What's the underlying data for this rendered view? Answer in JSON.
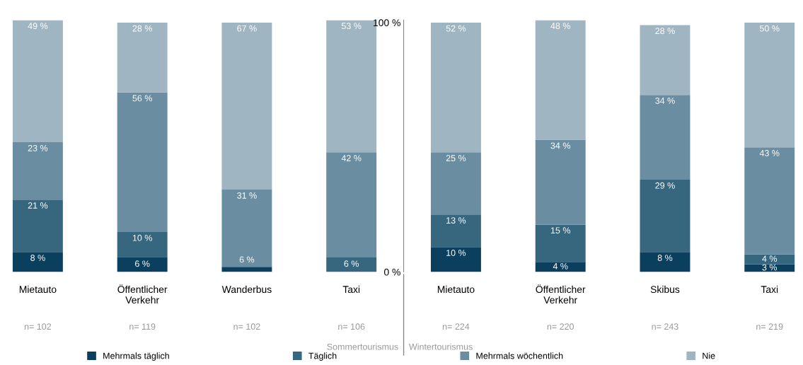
{
  "chart_data": {
    "type": "bar",
    "stacked": true,
    "categories": [
      "Mietauto",
      "Öffentlicher\nVerkehr",
      "Wanderbus",
      "Taxi",
      "Mietauto",
      "Öffentlicher\nVerkehr",
      "Skibus",
      "Taxi"
    ],
    "series": [
      {
        "name": "Mehrmals täglich",
        "color": "#0b3f5e",
        "values": [
          8,
          6,
          2,
          0,
          10,
          4,
          8,
          3
        ],
        "value_labels": [
          "8 %",
          "6 %",
          null,
          null,
          "10 %",
          "4 %",
          "8 %",
          "3 %"
        ]
      },
      {
        "name": "Täglich",
        "color": "#37677f",
        "values": [
          21,
          10,
          0,
          6,
          13,
          15,
          29,
          4
        ],
        "value_labels": [
          "21 %",
          "10 %",
          null,
          "6 %",
          "13 %",
          "15 %",
          "29 %",
          "4 %"
        ]
      },
      {
        "name": "Mehrmals wöchentlich",
        "color": "#6a8da1",
        "values": [
          23,
          56,
          31,
          42,
          25,
          34,
          34,
          43
        ],
        "value_labels": [
          "23 %",
          "56 %",
          "31 %",
          "42 %",
          "25 %",
          "34 %",
          "34 %",
          "43 %"
        ]
      },
      {
        "name": "Nie",
        "color": "#9fb5c2",
        "values": [
          49,
          28,
          67,
          53,
          52,
          48,
          28,
          50
        ],
        "value_labels": [
          "49 %",
          "28 %",
          "67 %",
          "53 %",
          "52 %",
          "48 %",
          "28 %",
          "50 %"
        ]
      }
    ],
    "ylim": [
      0,
      101
    ],
    "yticks": [
      {
        "value": 0,
        "label": "0 %"
      },
      {
        "value": 100,
        "label": "100 %"
      }
    ],
    "grid": false,
    "legend": "bottom",
    "annotations": [
      "n= 102",
      "n= 119",
      "n= 102",
      "n= 106",
      "n= 224",
      "n= 220",
      "n= 243",
      "n= 219",
      "Sommertourismus",
      "Wintertourismus",
      {
        "text": "6 %",
        "x": "Wanderbus",
        "y": 3
      }
    ]
  }
}
